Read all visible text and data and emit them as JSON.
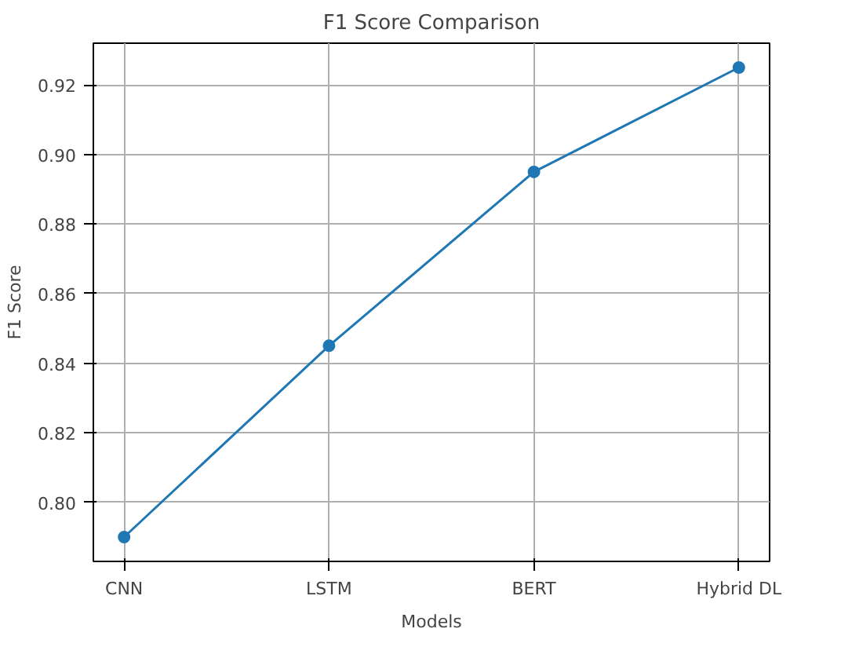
{
  "chart_data": {
    "type": "line",
    "title": "F1 Score Comparison",
    "xlabel": "Models",
    "ylabel": "F1 Score",
    "categories": [
      "CNN",
      "LSTM",
      "BERT",
      "Hybrid DL"
    ],
    "series": [
      {
        "color": "#1f77b4",
        "values": [
          0.79,
          0.845,
          0.895,
          0.925
        ]
      }
    ],
    "ylim": [
      0.783,
      0.932
    ],
    "yticks": [
      {
        "value": 0.8,
        "label": "0.80"
      },
      {
        "value": 0.82,
        "label": "0.82"
      },
      {
        "value": 0.84,
        "label": "0.84"
      },
      {
        "value": 0.86,
        "label": "0.86"
      },
      {
        "value": 0.88,
        "label": "0.88"
      },
      {
        "value": 0.9,
        "label": "0.90"
      },
      {
        "value": 0.92,
        "label": "0.92"
      }
    ],
    "grid": true,
    "marker": "circle",
    "line_style": "solid"
  }
}
